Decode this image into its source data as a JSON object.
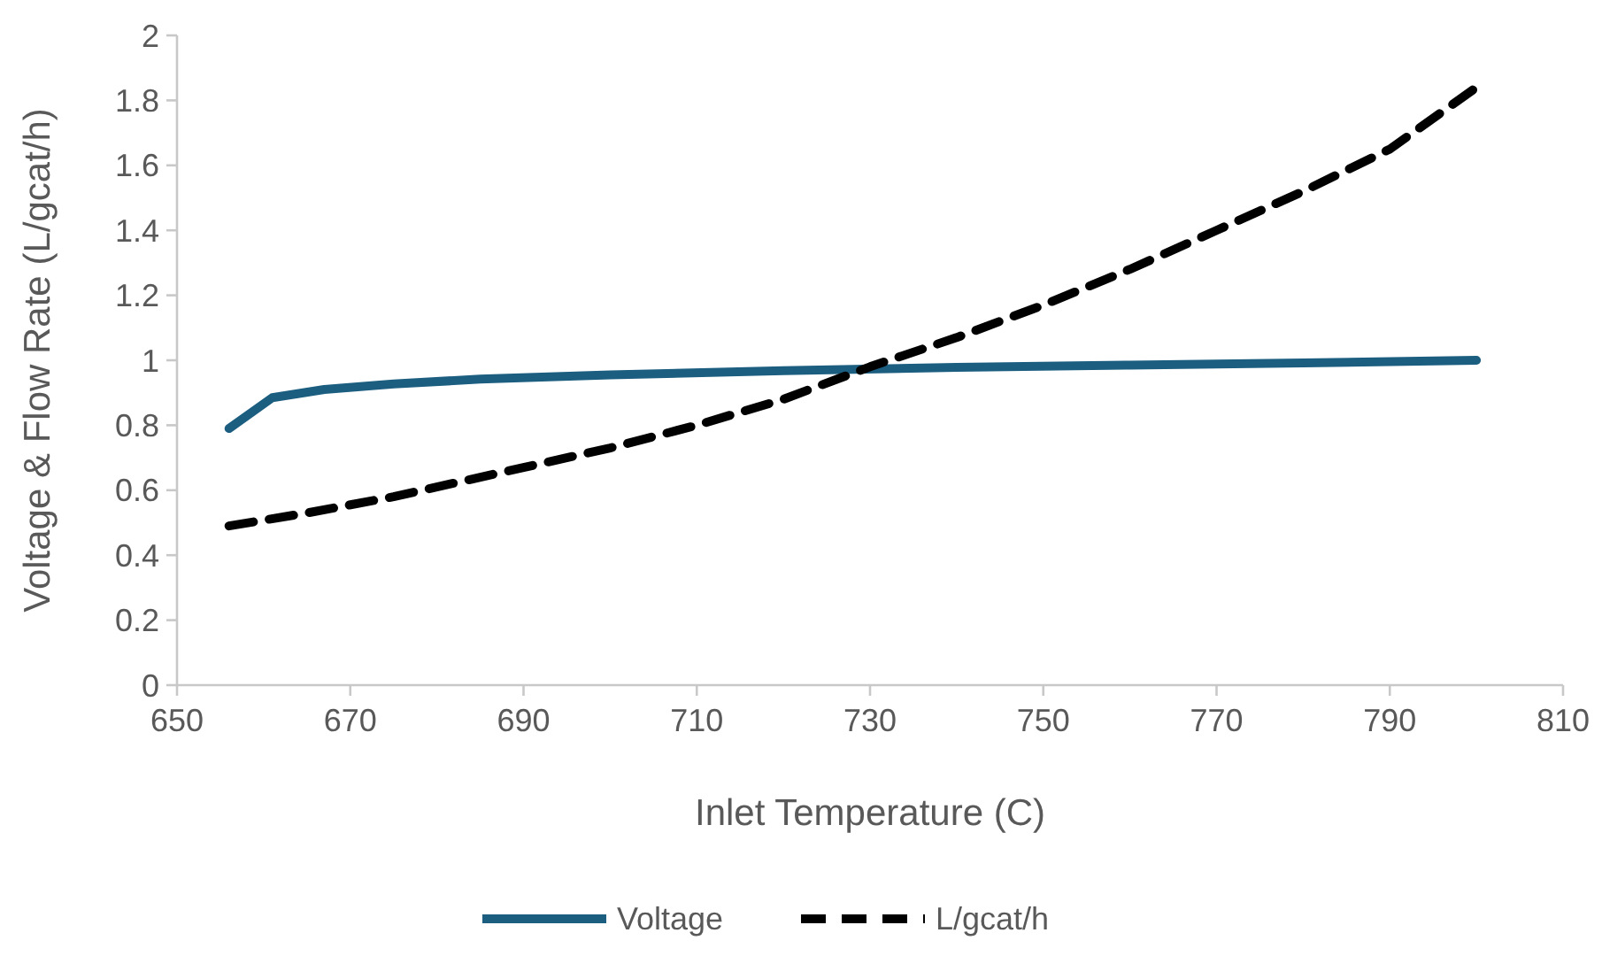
{
  "chart_data": {
    "type": "line",
    "xlabel": "Inlet Temperature (C)",
    "ylabel": "Voltage & Flow Rate (L/gcat/h)",
    "xlim": [
      650,
      810
    ],
    "xticks": [
      650,
      670,
      690,
      710,
      730,
      750,
      770,
      790,
      810
    ],
    "ylim": [
      0,
      2
    ],
    "yticks": [
      0,
      0.2,
      0.4,
      0.6,
      0.8,
      1,
      1.2,
      1.4,
      1.6,
      1.8,
      2
    ],
    "grid": false,
    "legend": "bottom",
    "marker": "none",
    "series": [
      {
        "name": "Voltage",
        "color": "#1b5e80",
        "line_style": "solid",
        "x": [
          656,
          661,
          667,
          675,
          685,
          700,
          720,
          740,
          760,
          780,
          800
        ],
        "values": [
          0.79,
          0.885,
          0.91,
          0.927,
          0.942,
          0.955,
          0.968,
          0.978,
          0.985,
          0.992,
          1.0
        ]
      },
      {
        "name": "L/gcat/h",
        "color": "#000000",
        "line_style": "dashed",
        "x": [
          656,
          665,
          675,
          690,
          700,
          710,
          720,
          730,
          740,
          750,
          760,
          770,
          780,
          790,
          800
        ],
        "values": [
          0.49,
          0.53,
          0.58,
          0.67,
          0.73,
          0.8,
          0.88,
          0.98,
          1.07,
          1.17,
          1.28,
          1.4,
          1.52,
          1.65,
          1.84
        ]
      }
    ]
  }
}
